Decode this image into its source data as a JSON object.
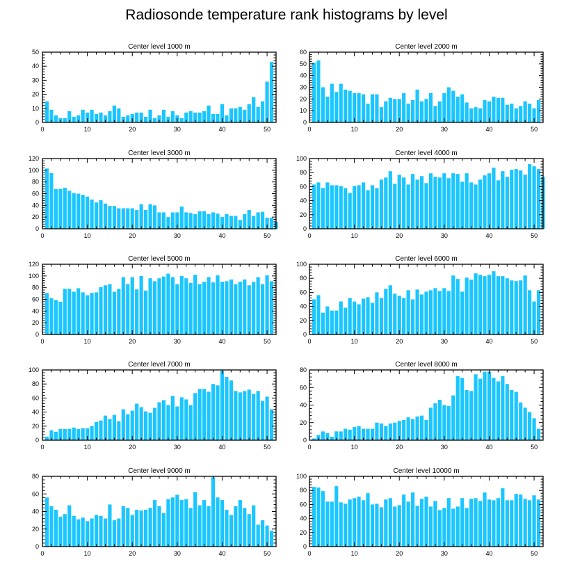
{
  "figure": {
    "title": "Radiosonde temperature rank histograms by level",
    "bar_color": "#1ac6ff"
  },
  "chart_data": [
    {
      "type": "bar",
      "title": "Center level 1000 m",
      "xlim": [
        0,
        52
      ],
      "ylim": [
        0,
        50
      ],
      "xticks": [
        0,
        10,
        20,
        30,
        40,
        50
      ],
      "yticks": [
        0,
        10,
        20,
        30,
        40,
        50
      ],
      "y_axis_side": "left",
      "values": [
        15,
        9,
        5,
        3,
        3,
        8,
        4,
        5,
        9,
        7,
        9,
        6,
        7,
        5,
        8,
        12,
        10,
        4,
        5,
        6,
        7,
        7,
        4,
        9,
        3,
        5,
        9,
        4,
        8,
        5,
        3,
        7,
        8,
        7,
        7,
        8,
        12,
        6,
        6,
        13,
        5,
        10,
        10,
        11,
        9,
        13,
        18,
        11,
        15,
        29,
        43
      ]
    },
    {
      "type": "bar",
      "title": "Center level 2000 m",
      "xlim": [
        0,
        52
      ],
      "ylim": [
        0,
        60
      ],
      "xticks": [
        0,
        10,
        20,
        30,
        40,
        50
      ],
      "yticks": [
        0,
        10,
        20,
        30,
        40,
        50,
        60
      ],
      "y_axis_side": "right",
      "values": [
        51,
        53,
        30,
        22,
        33,
        26,
        33,
        28,
        27,
        25,
        25,
        24,
        16,
        24,
        24,
        13,
        18,
        21,
        20,
        20,
        25,
        16,
        19,
        28,
        18,
        20,
        25,
        14,
        18,
        25,
        30,
        27,
        22,
        24,
        17,
        12,
        13,
        12,
        19,
        18,
        22,
        21,
        21,
        15,
        16,
        12,
        14,
        18,
        16,
        12,
        19
      ]
    },
    {
      "type": "bar",
      "title": "Center level 3000 m",
      "xlim": [
        0,
        52
      ],
      "ylim": [
        0,
        120
      ],
      "xticks": [
        0,
        10,
        20,
        30,
        40,
        50
      ],
      "yticks": [
        0,
        20,
        40,
        60,
        80,
        100,
        120
      ],
      "y_axis_side": "left",
      "values": [
        103,
        95,
        68,
        68,
        70,
        65,
        61,
        60,
        58,
        55,
        50,
        45,
        49,
        43,
        39,
        39,
        35,
        35,
        35,
        35,
        32,
        42,
        32,
        42,
        40,
        28,
        28,
        20,
        28,
        28,
        38,
        28,
        27,
        25,
        30,
        30,
        25,
        28,
        26,
        20,
        25,
        22,
        22,
        15,
        25,
        32,
        22,
        28,
        29,
        19,
        19,
        12
      ]
    },
    {
      "type": "bar",
      "title": "Center level 4000 m",
      "xlim": [
        0,
        52
      ],
      "ylim": [
        0,
        100
      ],
      "xticks": [
        0,
        10,
        20,
        30,
        40,
        50
      ],
      "yticks": [
        0,
        20,
        40,
        60,
        80,
        100
      ],
      "y_axis_side": "right",
      "values": [
        63,
        66,
        58,
        66,
        62,
        62,
        61,
        58,
        51,
        61,
        62,
        66,
        55,
        62,
        58,
        70,
        73,
        82,
        64,
        77,
        73,
        63,
        78,
        70,
        75,
        65,
        79,
        74,
        73,
        79,
        72,
        79,
        78,
        67,
        79,
        66,
        63,
        70,
        76,
        79,
        87,
        69,
        82,
        74,
        84,
        85,
        83,
        77,
        92,
        89,
        85,
        74
      ]
    },
    {
      "type": "bar",
      "title": "Center level 5000 m",
      "xlim": [
        0,
        52
      ],
      "ylim": [
        0,
        120
      ],
      "xticks": [
        0,
        10,
        20,
        30,
        40,
        50
      ],
      "yticks": [
        0,
        20,
        40,
        60,
        80,
        100,
        120
      ],
      "y_axis_side": "left",
      "values": [
        71,
        62,
        59,
        56,
        78,
        78,
        73,
        79,
        72,
        67,
        71,
        72,
        81,
        84,
        86,
        73,
        78,
        98,
        86,
        98,
        77,
        100,
        75,
        96,
        91,
        96,
        99,
        104,
        98,
        86,
        100,
        96,
        88,
        102,
        86,
        90,
        98,
        89,
        101,
        90,
        91,
        94,
        86,
        90,
        94,
        84,
        90,
        98,
        86,
        101,
        91
      ]
    },
    {
      "type": "bar",
      "title": "Center level 6000 m",
      "xlim": [
        0,
        52
      ],
      "ylim": [
        0,
        100
      ],
      "xticks": [
        0,
        10,
        20,
        30,
        40,
        50
      ],
      "yticks": [
        0,
        20,
        40,
        60,
        80,
        100
      ],
      "y_axis_side": "right",
      "values": [
        50,
        56,
        31,
        40,
        34,
        34,
        47,
        38,
        52,
        47,
        43,
        51,
        53,
        45,
        60,
        52,
        65,
        70,
        58,
        55,
        52,
        63,
        50,
        64,
        57,
        61,
        63,
        66,
        62,
        66,
        62,
        84,
        79,
        61,
        81,
        78,
        87,
        85,
        83,
        85,
        90,
        83,
        83,
        80,
        77,
        76,
        77,
        84,
        63,
        47,
        63
      ]
    },
    {
      "type": "bar",
      "title": "Center level 7000 m",
      "xlim": [
        0,
        52
      ],
      "ylim": [
        0,
        100
      ],
      "xticks": [
        0,
        10,
        20,
        30,
        40,
        50
      ],
      "yticks": [
        0,
        20,
        40,
        60,
        80,
        100
      ],
      "y_axis_side": "left",
      "values": [
        5,
        14,
        12,
        16,
        16,
        16,
        18,
        16,
        17,
        17,
        20,
        26,
        28,
        35,
        30,
        36,
        27,
        44,
        37,
        42,
        52,
        47,
        41,
        39,
        46,
        54,
        57,
        50,
        63,
        48,
        61,
        58,
        50,
        67,
        73,
        73,
        69,
        80,
        78,
        99,
        90,
        85,
        70,
        68,
        70,
        72,
        66,
        70,
        56,
        62,
        44
      ]
    },
    {
      "type": "bar",
      "title": "Center level 8000 m",
      "xlim": [
        0,
        52
      ],
      "ylim": [
        0,
        80
      ],
      "xticks": [
        0,
        10,
        20,
        30,
        40,
        50
      ],
      "yticks": [
        0,
        20,
        40,
        60,
        80
      ],
      "y_axis_side": "right",
      "values": [
        2,
        6,
        10,
        8,
        4,
        10,
        10,
        13,
        12,
        15,
        16,
        13,
        13,
        13,
        20,
        19,
        16,
        19,
        20,
        22,
        23,
        26,
        24,
        27,
        28,
        23,
        37,
        42,
        46,
        40,
        39,
        51,
        73,
        71,
        57,
        56,
        75,
        70,
        78,
        78,
        71,
        67,
        73,
        64,
        57,
        55,
        43,
        37,
        32,
        25,
        13
      ]
    },
    {
      "type": "bar",
      "title": "Center level 9000 m",
      "xlim": [
        0,
        52
      ],
      "ylim": [
        0,
        80
      ],
      "xticks": [
        0,
        10,
        20,
        30,
        40,
        50
      ],
      "yticks": [
        0,
        20,
        40,
        60,
        80
      ],
      "y_axis_side": "left",
      "values": [
        56,
        46,
        42,
        34,
        37,
        47,
        35,
        31,
        33,
        29,
        32,
        36,
        35,
        32,
        48,
        30,
        32,
        46,
        44,
        36,
        42,
        41,
        42,
        44,
        53,
        46,
        38,
        54,
        56,
        59,
        53,
        54,
        44,
        62,
        47,
        53,
        46,
        79,
        56,
        53,
        42,
        36,
        46,
        53,
        44,
        37,
        47,
        25,
        30,
        24,
        18
      ]
    },
    {
      "type": "bar",
      "title": "Center level 10000 m",
      "xlim": [
        0,
        52
      ],
      "ylim": [
        0,
        100
      ],
      "xticks": [
        0,
        10,
        20,
        30,
        40,
        50
      ],
      "yticks": [
        0,
        20,
        40,
        60,
        80,
        100
      ],
      "y_axis_side": "right",
      "values": [
        85,
        84,
        79,
        64,
        64,
        86,
        63,
        61,
        67,
        69,
        71,
        66,
        76,
        60,
        61,
        56,
        67,
        69,
        57,
        59,
        74,
        64,
        77,
        58,
        68,
        71,
        57,
        65,
        52,
        55,
        69,
        54,
        57,
        69,
        55,
        68,
        69,
        65,
        77,
        67,
        66,
        69,
        83,
        66,
        66,
        75,
        74,
        68,
        66,
        73,
        67
      ]
    }
  ]
}
